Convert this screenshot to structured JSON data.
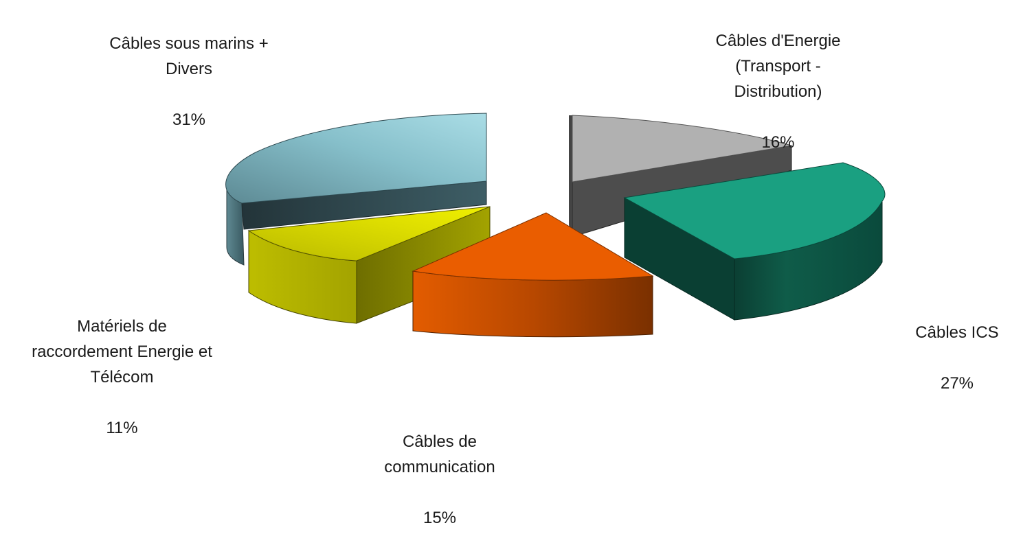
{
  "chart_data": {
    "type": "pie",
    "style": "3d-exploded",
    "slices": [
      {
        "label": "Câbles d'Energie\n(Transport -\nDistribution)",
        "percent": "16%",
        "value": 16,
        "top_color": "#b0b0b0",
        "side_color": "#4a4a4a"
      },
      {
        "label": "Câbles ICS",
        "percent": "27%",
        "value": 27,
        "top_color": "#1aa080",
        "side_color": "#0a4a3c"
      },
      {
        "label": "Câbles de\ncommunication",
        "percent": "15%",
        "value": 15,
        "top_color": "#ea5e00",
        "side_color": "#b44400"
      },
      {
        "label": "Matériels de\nraccordement  Energie et\nTélécom",
        "percent": "11%",
        "value": 11,
        "top_color": "#e2e200",
        "side_color": "#a8a800"
      },
      {
        "label": "Câbles sous marins +\nDivers",
        "percent": "31%",
        "value": 31,
        "top_color": "#8ecad6",
        "side_color": "#3e5e66"
      }
    ]
  }
}
